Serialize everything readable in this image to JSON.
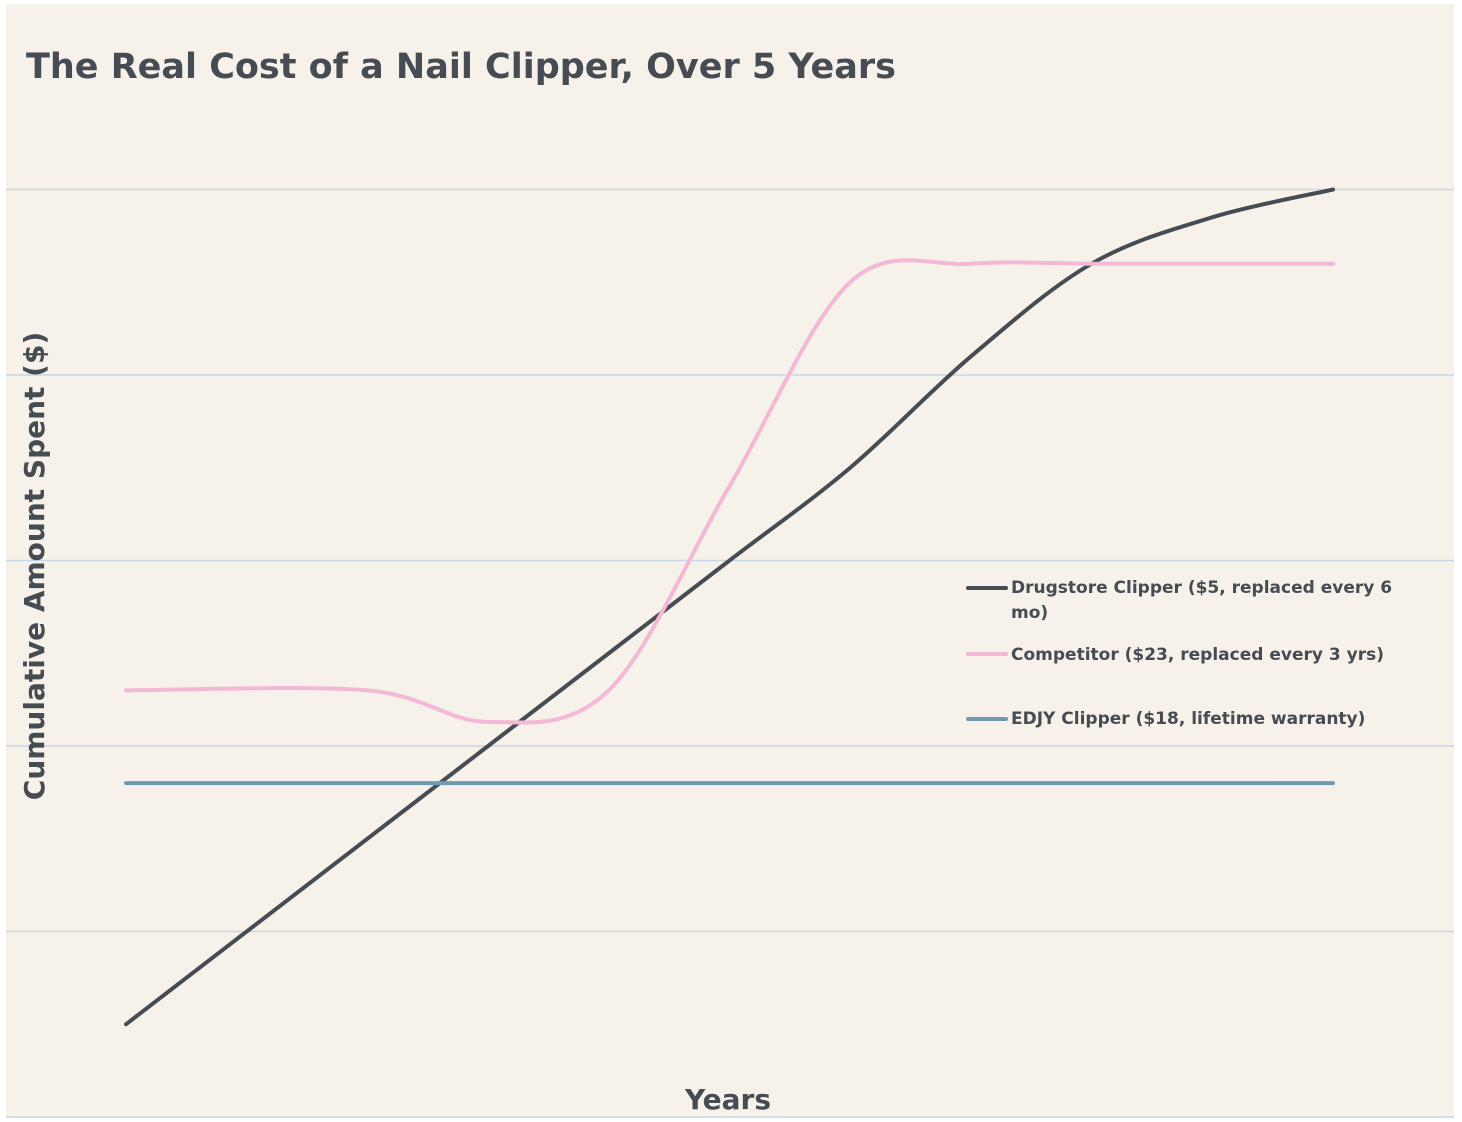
{
  "chart_data": {
    "type": "line",
    "title": "The Real Cost of a Nail Clipper, Over 5 Years",
    "xlabel": "Years",
    "ylabel": "Cumulative Amount Spent ($)",
    "x": [
      0,
      1,
      1.5,
      2,
      2.5,
      3,
      3.5,
      4,
      4.5,
      5
    ],
    "ylim": [
      0,
      60
    ],
    "grid_y": [
      10,
      20,
      30,
      40,
      50
    ],
    "legend_position": "right",
    "series": [
      {
        "name": "Drugstore Clipper ($5, replaced every 6 mo)",
        "color": "#454c53",
        "values": [
          5,
          15,
          20,
          25,
          30,
          35,
          41,
          46,
          48.5,
          50
        ]
      },
      {
        "name": "Competitor ($23, replaced every 3 yrs)",
        "color": "#f2b8d6",
        "values": [
          23,
          23,
          21.3,
          23,
          34,
          45,
          46,
          46,
          46,
          46
        ]
      },
      {
        "name": "EDJY Clipper ($18, lifetime warranty)",
        "color": "#6f98b1",
        "values": [
          18,
          18,
          18,
          18,
          18,
          18,
          18,
          18,
          18,
          18
        ]
      }
    ]
  }
}
